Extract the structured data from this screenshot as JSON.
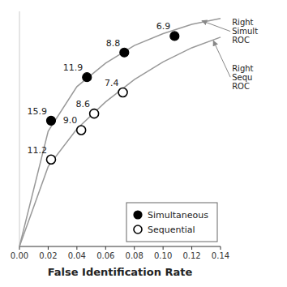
{
  "chart_data": {
    "type": "line",
    "xlabel": "False Identification Rate",
    "series": [
      {
        "type": "line",
        "color": "#999999",
        "x": [
          0.0,
          0.02,
          0.04,
          0.06,
          0.08,
          0.1,
          0.12,
          0.14
        ],
        "values": [
          0.0,
          0.49,
          0.68,
          0.78,
          0.855,
          0.905,
          0.945,
          0.97
        ]
      },
      {
        "type": "line",
        "color": "#999999",
        "x": [
          0.0,
          0.02,
          0.04,
          0.06,
          0.08,
          0.1,
          0.12,
          0.14
        ],
        "values": [
          0.0,
          0.34,
          0.5,
          0.615,
          0.71,
          0.785,
          0.845,
          0.89
        ]
      },
      {
        "type": "scatter",
        "name": "Simultaneous",
        "color": "#000000",
        "marker": "circle",
        "x": [
          0.022,
          0.047,
          0.073,
          0.108
        ],
        "values": [
          0.535,
          0.72,
          0.825,
          0.895
        ],
        "labels": [
          "15.9",
          "11.9",
          "8.8",
          "6.9"
        ]
      },
      {
        "type": "scatter",
        "name": "Sequential",
        "color": "#000000",
        "marker": "circle-open",
        "x": [
          0.022,
          0.043,
          0.052,
          0.072
        ],
        "values": [
          0.37,
          0.495,
          0.565,
          0.655
        ],
        "labels": [
          "11.2",
          "9.0",
          "8.6",
          "7.4"
        ]
      }
    ],
    "annotations": [
      {
        "text": "Right\nSimult\nROC",
        "x": 0.127,
        "y": 0.96,
        "text_x": 0.148,
        "text_y": 0.915
      },
      {
        "text": "Right\nSequ\nROC",
        "x": 0.135,
        "y": 0.875,
        "text_x": 0.148,
        "text_y": 0.72
      }
    ],
    "xlim": [
      0.0,
      0.14
    ],
    "ylim": [
      0.0,
      1.0
    ],
    "xticks": [
      {
        "value": 0.0,
        "label": "0.00"
      },
      0.02,
      0.04,
      0.06,
      0.08,
      {
        "value": 0.1,
        "label": "0.10"
      },
      0.12,
      0.14
    ],
    "yticks": [],
    "tick_labels": "x",
    "grid": false,
    "legend": "lower right"
  }
}
